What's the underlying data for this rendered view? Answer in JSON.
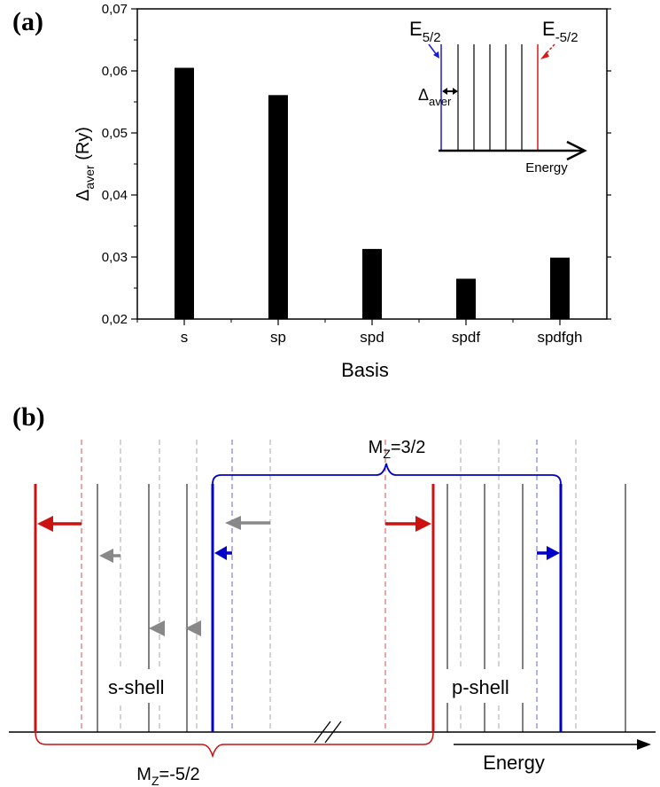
{
  "panel_a": {
    "label": "(a)",
    "chart_data": {
      "type": "bar",
      "categories": [
        "s",
        "sp",
        "spd",
        "spdf",
        "spdfgh"
      ],
      "values": [
        0.0605,
        0.0561,
        0.0313,
        0.0265,
        0.0299
      ],
      "xlabel": "Basis",
      "ylabel_main": "Δ",
      "ylabel_sub": "aver",
      "ylabel_unit": " (Ry)",
      "ylim": [
        0.02,
        0.07
      ],
      "yticks": [
        0.02,
        0.03,
        0.04,
        0.05,
        0.06,
        0.07
      ],
      "ytick_labels": [
        "0,02",
        "0,03",
        "0,04",
        "0,05",
        "0,06",
        "0,07"
      ],
      "bar_color": "#000000"
    },
    "inset": {
      "e_pos_main": "E",
      "e_pos_sub": "5/2",
      "e_neg_main": "E",
      "e_neg_sub": "-5/2",
      "delta_main": "Δ",
      "delta_sub": "aver",
      "axis_label": "Energy",
      "blue": "#1a1ad8",
      "red": "#d81a1a"
    }
  },
  "panel_b": {
    "label": "(b)",
    "mz_top_main": "M",
    "mz_top_sub": "Z",
    "mz_top_value": "=3/2",
    "mz_bottom_main": "M",
    "mz_bottom_sub": "Z",
    "mz_bottom_value": "=-5/2",
    "s_shell": "s-shell",
    "p_shell": "p-shell",
    "energy": "Energy",
    "blue": "#0000c8",
    "red": "#cc1111",
    "gray": "#888888"
  }
}
